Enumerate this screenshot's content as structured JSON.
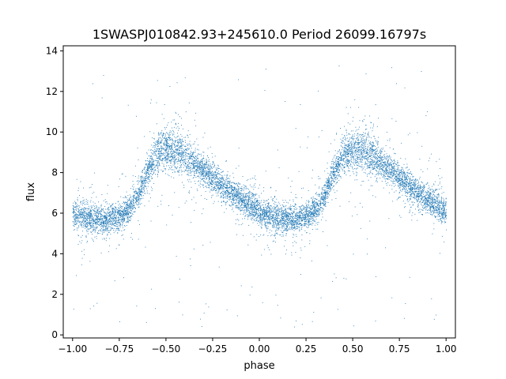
{
  "chart_data": {
    "type": "scatter",
    "title": "1SWASPJ010842.93+245610.0 Period 26099.16797s",
    "xlabel": "phase",
    "ylabel": "flux",
    "xlim": [
      -1.05,
      1.05
    ],
    "ylim": [
      -0.15,
      14.25
    ],
    "x_ticks": [
      -1.0,
      -0.75,
      -0.5,
      -0.25,
      0.0,
      0.25,
      0.5,
      0.75,
      1.0
    ],
    "x_tick_labels": [
      "−1.00",
      "−0.75",
      "−0.50",
      "−0.25",
      "0.00",
      "0.25",
      "0.50",
      "0.75",
      "1.00"
    ],
    "y_ticks": [
      0,
      2,
      4,
      6,
      8,
      10,
      12,
      14
    ],
    "y_tick_labels": [
      "0",
      "2",
      "4",
      "6",
      "8",
      "10",
      "12",
      "14"
    ],
    "grid": false,
    "marker_color": "#1f77b4",
    "series": [
      {
        "phase_range": [
          -1.0,
          1.0
        ],
        "mean_curve": {
          "x": [
            0.0,
            0.05,
            0.1,
            0.15,
            0.2,
            0.25,
            0.3,
            0.35,
            0.4,
            0.45,
            0.5,
            0.55,
            0.6,
            0.65,
            0.7,
            0.75,
            0.8,
            0.85,
            0.9,
            0.95,
            1.0
          ],
          "y": [
            6.0,
            5.85,
            5.75,
            5.7,
            5.75,
            5.85,
            6.2,
            6.9,
            8.1,
            8.9,
            9.15,
            9.1,
            8.85,
            8.5,
            8.15,
            7.75,
            7.35,
            7.0,
            6.7,
            6.4,
            6.15
          ]
        },
        "scatter_width": 0.35,
        "outlier_range": [
          0.4,
          13.6
        ]
      }
    ]
  }
}
